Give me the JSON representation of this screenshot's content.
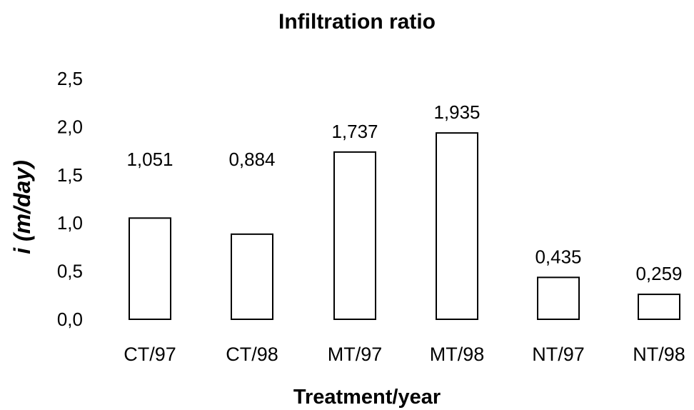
{
  "chart_data": {
    "type": "bar",
    "title": "Infiltration ratio",
    "xlabel": "Treatment/year",
    "ylabel": "i (m/day)",
    "categories": [
      "CT/97",
      "CT/98",
      "MT/97",
      "MT/98",
      "NT/97",
      "NT/98"
    ],
    "values": [
      1.051,
      0.884,
      1.737,
      1.935,
      0.435,
      0.259
    ],
    "value_labels": [
      "1,051",
      "0,884",
      "1,737",
      "1,935",
      "0,435",
      "0,259"
    ],
    "y_ticks": [
      "0,0",
      "0,5",
      "1,0",
      "1,5",
      "2,0",
      "2,5"
    ],
    "y_tick_values": [
      0,
      0.5,
      1.0,
      1.5,
      2.0,
      2.5
    ],
    "ylim": [
      0,
      2.5
    ],
    "grid": false,
    "legend": "none",
    "bar_fill": "#ffffff",
    "bar_stroke": "#000000"
  }
}
